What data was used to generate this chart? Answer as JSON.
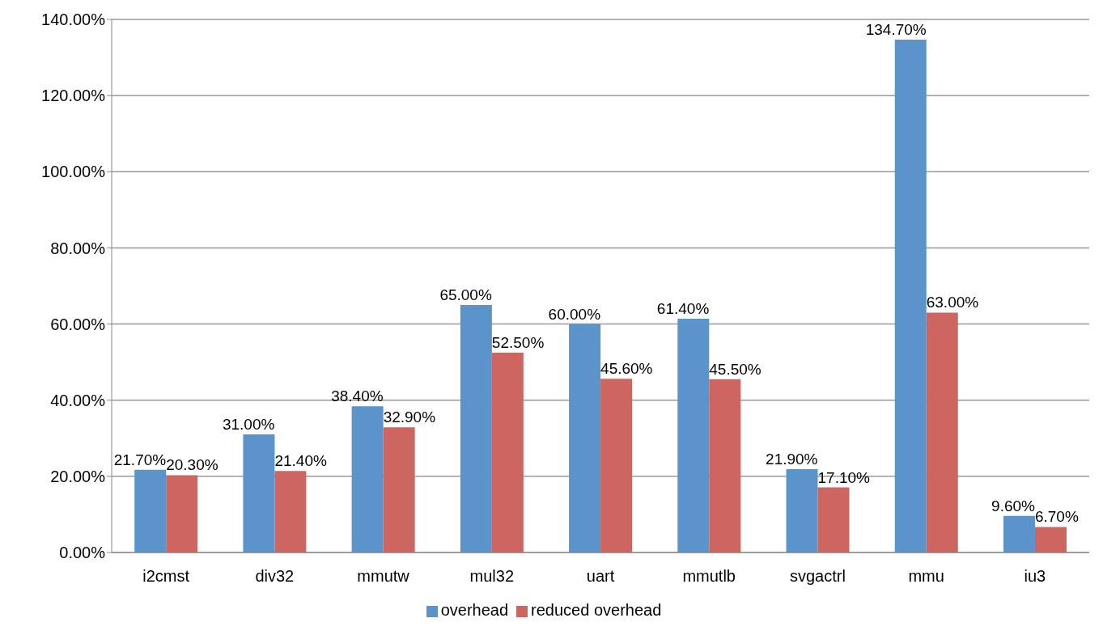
{
  "chart_data": {
    "type": "bar",
    "categories": [
      "i2cmst",
      "div32",
      "mmutw",
      "mul32",
      "uart",
      "mmutlb",
      "svgactrl",
      "mmu",
      "iu3"
    ],
    "series": [
      {
        "name": "overhead",
        "color": "#5b93cb",
        "values": [
          21.7,
          31.0,
          38.4,
          65.0,
          60.0,
          61.4,
          21.9,
          134.7,
          9.6
        ],
        "value_labels": [
          "21.70%",
          "31.00%",
          "38.40%",
          "65.00%",
          "60.00%",
          "61.40%",
          "21.90%",
          "134.70%",
          "9.60%"
        ]
      },
      {
        "name": "reduced overhead",
        "color": "#cd6660",
        "values": [
          20.3,
          21.4,
          32.9,
          52.5,
          45.6,
          45.5,
          17.1,
          63.0,
          6.7
        ],
        "value_labels": [
          "20.30%",
          "21.40%",
          "32.90%",
          "52.50%",
          "45.60%",
          "45.50%",
          "17.10%",
          "63.00%",
          "6.70%"
        ]
      }
    ],
    "ylim": [
      0,
      140
    ],
    "yticks": [
      {
        "value": 0,
        "label": "0.00%"
      },
      {
        "value": 20,
        "label": "20.00%"
      },
      {
        "value": 40,
        "label": "40.00%"
      },
      {
        "value": 60,
        "label": "60.00%"
      },
      {
        "value": 80,
        "label": "80.00%"
      },
      {
        "value": 100,
        "label": "100.00%"
      },
      {
        "value": 120,
        "label": "120.00%"
      },
      {
        "value": 140,
        "label": "140.00%"
      }
    ],
    "grid": "y",
    "legend": "bottom"
  }
}
